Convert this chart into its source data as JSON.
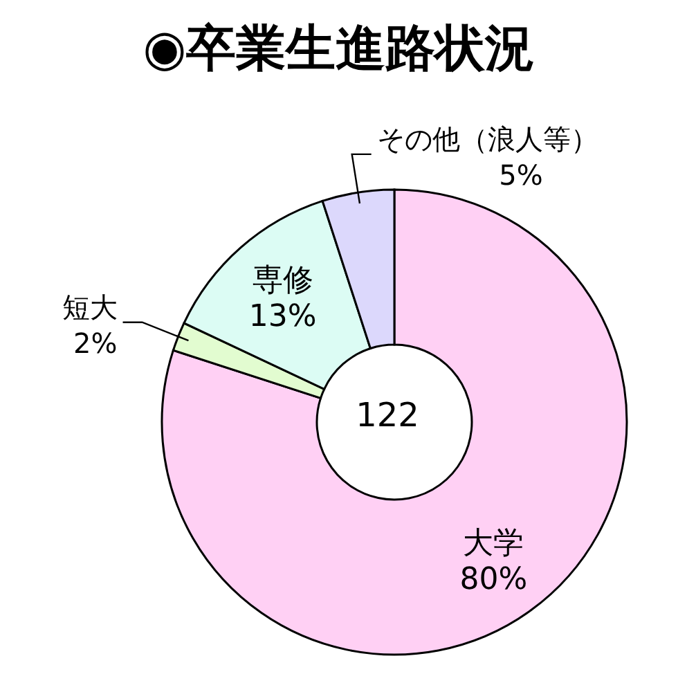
{
  "chart_data": {
    "type": "donut",
    "title": "◉卒業生進路状況",
    "categories": [
      "大学",
      "短大",
      "専修",
      "その他（浪人等）"
    ],
    "values": [
      80,
      2,
      13,
      5
    ],
    "value_labels": [
      "80%",
      "2%",
      "13%",
      "5%"
    ],
    "colors": [
      "#ffd0f4",
      "#e2fcd0",
      "#dcfcf4",
      "#dcd8fc"
    ],
    "annotations": [
      "122"
    ],
    "legend": false
  }
}
